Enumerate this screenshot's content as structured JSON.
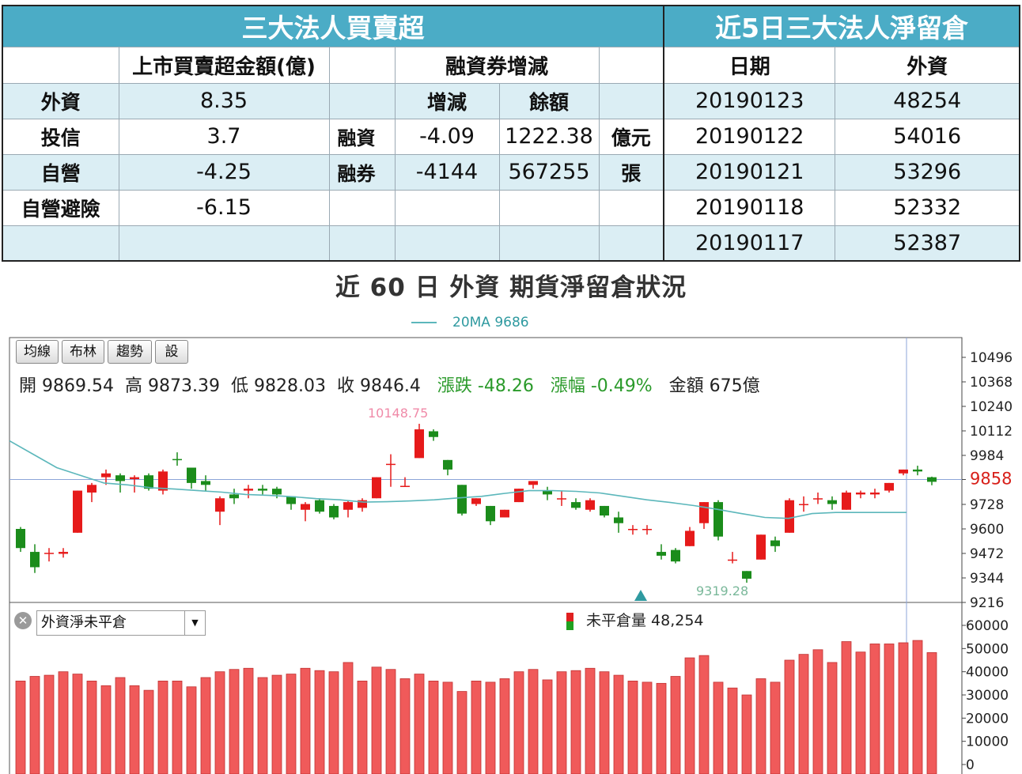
{
  "left_table": {
    "title": "三大法人買賣超",
    "headers": {
      "amount": "上市買賣超金額(億)",
      "margin": "融資券增減"
    },
    "subheaders": {
      "change": "增減",
      "balance": "餘額"
    },
    "rows": [
      {
        "label": "外資",
        "amount": "8.35",
        "m_label": "",
        "m_change": "",
        "m_balance": "",
        "m_unit": ""
      },
      {
        "label": "投信",
        "amount": "3.7",
        "m_label": "融資",
        "m_change": "-4.09",
        "m_balance": "1222.38",
        "m_unit": "億元"
      },
      {
        "label": "自營",
        "amount": "-4.25",
        "m_label": "融券",
        "m_change": "-4144",
        "m_balance": "567255",
        "m_unit": "張"
      },
      {
        "label": "自營避險",
        "amount": "-6.15",
        "m_label": "",
        "m_change": "",
        "m_balance": "",
        "m_unit": ""
      }
    ]
  },
  "right_table": {
    "title": "近5日三大法人淨留倉",
    "headers": {
      "date": "日期",
      "foreign": "外資"
    },
    "rows": [
      {
        "date": "20190123",
        "foreign": "48254"
      },
      {
        "date": "20190122",
        "foreign": "54016"
      },
      {
        "date": "20190121",
        "foreign": "53296"
      },
      {
        "date": "20190118",
        "foreign": "52332"
      },
      {
        "date": "20190117",
        "foreign": "52387"
      }
    ]
  },
  "chart_title": "近 60 日 外資 期貨淨留倉狀況",
  "toolbar": {
    "buttons": [
      "均線",
      "布林",
      "趨勢",
      "設"
    ]
  },
  "ma_legend": "20MA 9686",
  "ohlc": {
    "open": "開 9869.54",
    "high": "高 9873.39",
    "low": "低 9828.03",
    "close": "收 9846.4",
    "change": "漲跌 -48.26",
    "pct": "漲幅  -0.49%",
    "amount": "金額 675億"
  },
  "lower_panel": {
    "select_value": "外資淨未平倉",
    "legend": "未平倉量 48,254",
    "close_glyph": "✕",
    "arrow_glyph": "▼"
  },
  "colors": {
    "up": "#e61a1a",
    "down": "#1b8c1b",
    "ma": "#5cb7bb",
    "bar": "#f05a5a",
    "header": "#4bacc6",
    "alt_row": "#dbeef4"
  },
  "chart_data": {
    "type": "candlestick",
    "price_axis": {
      "ticks": [
        10496,
        10368,
        10240,
        10112,
        9984,
        9858,
        9728,
        9600,
        9472,
        9344,
        9216
      ],
      "current": 9858,
      "range": [
        9216,
        10496
      ]
    },
    "annotations": {
      "high": "10148.75",
      "low": "9319.28"
    },
    "candles": [
      {
        "o": 9600,
        "c": 9500,
        "h": 9610,
        "l": 9480
      },
      {
        "o": 9480,
        "c": 9400,
        "h": 9520,
        "l": 9370
      },
      {
        "o": 9470,
        "c": 9475,
        "h": 9500,
        "l": 9430
      },
      {
        "o": 9470,
        "c": 9480,
        "h": 9500,
        "l": 9450
      },
      {
        "o": 9580,
        "c": 9800,
        "h": 9800,
        "l": 9580
      },
      {
        "o": 9790,
        "c": 9830,
        "h": 9840,
        "l": 9740
      },
      {
        "o": 9870,
        "c": 9890,
        "h": 9910,
        "l": 9830
      },
      {
        "o": 9880,
        "c": 9850,
        "h": 9890,
        "l": 9790
      },
      {
        "o": 9860,
        "c": 9870,
        "h": 9880,
        "l": 9790
      },
      {
        "o": 9880,
        "c": 9810,
        "h": 9890,
        "l": 9800
      },
      {
        "o": 9800,
        "c": 9900,
        "h": 9910,
        "l": 9780
      },
      {
        "o": 9965,
        "c": 9960,
        "h": 10000,
        "l": 9930
      },
      {
        "o": 9920,
        "c": 9840,
        "h": 9920,
        "l": 9810
      },
      {
        "o": 9850,
        "c": 9830,
        "h": 9880,
        "l": 9800
      },
      {
        "o": 9690,
        "c": 9760,
        "h": 9770,
        "l": 9620
      },
      {
        "o": 9780,
        "c": 9760,
        "h": 9810,
        "l": 9730
      },
      {
        "o": 9800,
        "c": 9810,
        "h": 9830,
        "l": 9760
      },
      {
        "o": 9810,
        "c": 9800,
        "h": 9830,
        "l": 9780
      },
      {
        "o": 9810,
        "c": 9780,
        "h": 9820,
        "l": 9760
      },
      {
        "o": 9770,
        "c": 9730,
        "h": 9770,
        "l": 9700
      },
      {
        "o": 9700,
        "c": 9730,
        "h": 9740,
        "l": 9640
      },
      {
        "o": 9750,
        "c": 9690,
        "h": 9760,
        "l": 9680
      },
      {
        "o": 9720,
        "c": 9660,
        "h": 9730,
        "l": 9650
      },
      {
        "o": 9700,
        "c": 9740,
        "h": 9750,
        "l": 9660
      },
      {
        "o": 9710,
        "c": 9750,
        "h": 9760,
        "l": 9690
      },
      {
        "o": 9760,
        "c": 9870,
        "h": 9870,
        "l": 9760
      },
      {
        "o": 9940,
        "c": 9940,
        "h": 9990,
        "l": 9820
      },
      {
        "o": 9825,
        "c": 9825,
        "h": 9870,
        "l": 9820
      },
      {
        "o": 9970,
        "c": 10120,
        "h": 10149,
        "l": 9970
      },
      {
        "o": 10110,
        "c": 10080,
        "h": 10120,
        "l": 10060
      },
      {
        "o": 9960,
        "c": 9910,
        "h": 9960,
        "l": 9880
      },
      {
        "o": 9830,
        "c": 9680,
        "h": 9830,
        "l": 9670
      },
      {
        "o": 9730,
        "c": 9760,
        "h": 9760,
        "l": 9720
      },
      {
        "o": 9720,
        "c": 9640,
        "h": 9720,
        "l": 9620
      },
      {
        "o": 9660,
        "c": 9700,
        "h": 9700,
        "l": 9660
      },
      {
        "o": 9740,
        "c": 9810,
        "h": 9810,
        "l": 9740
      },
      {
        "o": 9830,
        "c": 9850,
        "h": 9850,
        "l": 9810
      },
      {
        "o": 9800,
        "c": 9780,
        "h": 9820,
        "l": 9750
      },
      {
        "o": 9760,
        "c": 9760,
        "h": 9800,
        "l": 9720
      },
      {
        "o": 9740,
        "c": 9710,
        "h": 9760,
        "l": 9700
      },
      {
        "o": 9700,
        "c": 9750,
        "h": 9760,
        "l": 9690
      },
      {
        "o": 9720,
        "c": 9670,
        "h": 9720,
        "l": 9660
      },
      {
        "o": 9660,
        "c": 9630,
        "h": 9690,
        "l": 9580
      },
      {
        "o": 9600,
        "c": 9600,
        "h": 9620,
        "l": 9570
      },
      {
        "o": 9600,
        "c": 9600,
        "h": 9620,
        "l": 9570
      },
      {
        "o": 9480,
        "c": 9460,
        "h": 9520,
        "l": 9440
      },
      {
        "o": 9490,
        "c": 9430,
        "h": 9500,
        "l": 9420
      },
      {
        "o": 9510,
        "c": 9590,
        "h": 9610,
        "l": 9510
      },
      {
        "o": 9630,
        "c": 9740,
        "h": 9740,
        "l": 9600
      },
      {
        "o": 9740,
        "c": 9560,
        "h": 9750,
        "l": 9540
      },
      {
        "o": 9440,
        "c": 9440,
        "h": 9480,
        "l": 9420
      },
      {
        "o": 9380,
        "c": 9340,
        "h": 9380,
        "l": 9319
      },
      {
        "o": 9440,
        "c": 9570,
        "h": 9570,
        "l": 9440
      },
      {
        "o": 9540,
        "c": 9510,
        "h": 9560,
        "l": 9480
      },
      {
        "o": 9580,
        "c": 9750,
        "h": 9760,
        "l": 9580
      },
      {
        "o": 9730,
        "c": 9730,
        "h": 9770,
        "l": 9690
      },
      {
        "o": 9760,
        "c": 9760,
        "h": 9790,
        "l": 9730
      },
      {
        "o": 9750,
        "c": 9730,
        "h": 9770,
        "l": 9700
      },
      {
        "o": 9700,
        "c": 9790,
        "h": 9800,
        "l": 9700
      },
      {
        "o": 9780,
        "c": 9790,
        "h": 9800,
        "l": 9760
      },
      {
        "o": 9780,
        "c": 9790,
        "h": 9810,
        "l": 9760
      },
      {
        "o": 9800,
        "c": 9840,
        "h": 9840,
        "l": 9790
      },
      {
        "o": 9890,
        "c": 9910,
        "h": 9910,
        "l": 9880
      },
      {
        "o": 9910,
        "c": 9900,
        "h": 9930,
        "l": 9880
      },
      {
        "o": 9870,
        "c": 9846,
        "h": 9873,
        "l": 9828
      }
    ],
    "ma20": [
      10060,
      9990,
      9920,
      9880,
      9840,
      9830,
      9815,
      9808,
      9800,
      9792,
      9780,
      9775,
      9768,
      9758,
      9752,
      9740,
      9742,
      9746,
      9752,
      9762,
      9770,
      9786,
      9800,
      9800,
      9796,
      9788,
      9770,
      9752,
      9738,
      9722,
      9702,
      9680,
      9660,
      9655,
      9680,
      9686,
      9686,
      9686,
      9686
    ],
    "oi_axis": {
      "ticks": [
        60000,
        50000,
        40000,
        30000,
        20000,
        10000,
        0
      ],
      "range": [
        0,
        60000
      ]
    },
    "oi": [
      36000,
      38000,
      38500,
      40000,
      39000,
      36000,
      34000,
      37500,
      34000,
      32000,
      36000,
      36000,
      33500,
      37500,
      40000,
      41000,
      41500,
      37500,
      38500,
      39000,
      41500,
      40500,
      40000,
      44000,
      36000,
      42000,
      41000,
      37000,
      39000,
      36000,
      35500,
      31500,
      36000,
      35500,
      37000,
      40000,
      41000,
      36500,
      40000,
      40500,
      41500,
      40000,
      38500,
      36000,
      35500,
      35000,
      38000,
      46000,
      47000,
      35500,
      33000,
      30000,
      37000,
      35500,
      45000,
      47500,
      49500,
      44000,
      53000,
      48500,
      52000,
      52000,
      52500,
      53500,
      48254
    ]
  }
}
